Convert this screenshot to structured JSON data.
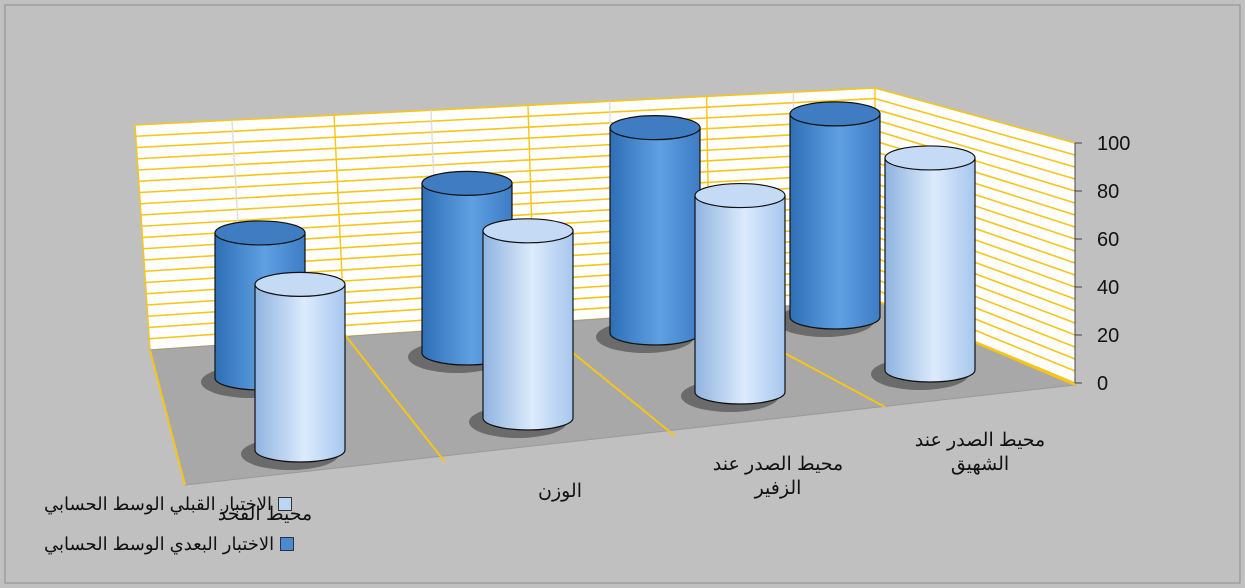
{
  "chart_data": {
    "type": "bar",
    "style": "3d-cylinder",
    "categories": [
      "محيط الفخذ",
      "الوزن",
      "محيط الصدر عند الزفير",
      "محيط الصدر عند الشهيق"
    ],
    "series": [
      {
        "name": "الاختبار القبلي الوسط الحسابي",
        "values": [
          69,
          78,
          88,
          95
        ],
        "color": "#bcd6f6"
      },
      {
        "name": "الاختبار البعدي الوسط الحسابي",
        "values": [
          65,
          76,
          92,
          91
        ],
        "color": "#4a8ad0"
      }
    ],
    "ylim": [
      0,
      100
    ],
    "yticks": [
      "0",
      "20",
      "40",
      "60",
      "80",
      "100"
    ],
    "grid": true,
    "legend": "bottom-left",
    "colors": {
      "background": "#c0c0c0",
      "gridline": "#f5c518",
      "wall": "#ffffff",
      "floor": "#a8a8a8"
    }
  }
}
